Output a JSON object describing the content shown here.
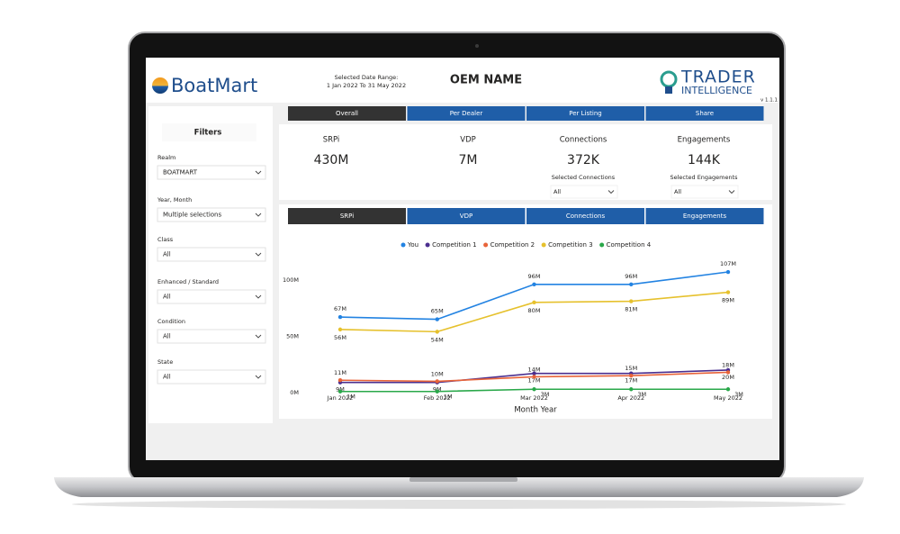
{
  "header": {
    "brand": "BoatMart",
    "date_range_label": "Selected Date Range:",
    "date_range": "1 Jan 2022 To 31 May 2022",
    "title": "OEM NAME",
    "logo_line1": "TRADER",
    "logo_line2": "INTELLIGENCE",
    "version": "v 1.1.1"
  },
  "filters": {
    "title": "Filters",
    "items": [
      {
        "label": "Realm",
        "value": "BOATMART"
      },
      {
        "label": "Year, Month",
        "value": "Multiple selections"
      },
      {
        "label": "Class",
        "value": "All"
      },
      {
        "label": "Enhanced / Standard",
        "value": "All"
      },
      {
        "label": "Condition",
        "value": "All"
      },
      {
        "label": "State",
        "value": "All"
      }
    ]
  },
  "top_tabs": [
    "Overall",
    "Per Dealer",
    "Per Listing",
    "Share"
  ],
  "kpis": [
    {
      "label": "SRPi",
      "value": "430M"
    },
    {
      "label": "VDP",
      "value": "7M"
    },
    {
      "label": "Connections",
      "value": "372K",
      "selector_label": "Selected Connections",
      "selector_value": "All"
    },
    {
      "label": "Engagements",
      "value": "144K",
      "selector_label": "Selected Engagements",
      "selector_value": "All"
    }
  ],
  "chart_tabs": [
    "SRPi",
    "VDP",
    "Connections",
    "Engagements"
  ],
  "chart_data": {
    "type": "line",
    "x_label": "Month Year",
    "legend": "top",
    "categories": [
      "Jan 2022",
      "Feb 2022",
      "Mar 2022",
      "Apr 2022",
      "May 2022"
    ],
    "series": [
      {
        "name": "You",
        "color": "#2383e2",
        "values": [
          67,
          65,
          96,
          96,
          107
        ],
        "value_labels": [
          "67M",
          "65M",
          "96M",
          "96M",
          "107M"
        ]
      },
      {
        "name": "Competition 1",
        "color": "#4b2f8f",
        "values": [
          9,
          9,
          17,
          17,
          20
        ],
        "value_labels": [
          "9M",
          "9M",
          "17M",
          "17M",
          "20M"
        ]
      },
      {
        "name": "Competition 2",
        "color": "#e8643a",
        "values": [
          11,
          10,
          14,
          15,
          18
        ],
        "value_labels": [
          "11M",
          "10M",
          "14M",
          "15M",
          "18M"
        ]
      },
      {
        "name": "Competition 3",
        "color": "#e6c12d",
        "values": [
          56,
          54,
          80,
          81,
          89
        ],
        "value_labels": [
          "56M",
          "54M",
          "80M",
          "81M",
          "89M"
        ]
      },
      {
        "name": "Competition 4",
        "color": "#2aa84a",
        "values": [
          1,
          1,
          3,
          3,
          3
        ],
        "value_labels": [
          "1M",
          "1M",
          "3M",
          "3M",
          "3M"
        ]
      }
    ],
    "ylim": [
      0,
      115
    ],
    "yticks": [
      {
        "value": 0,
        "label": "0M"
      },
      {
        "value": 50,
        "label": "50M"
      },
      {
        "value": 100,
        "label": "100M"
      }
    ]
  }
}
